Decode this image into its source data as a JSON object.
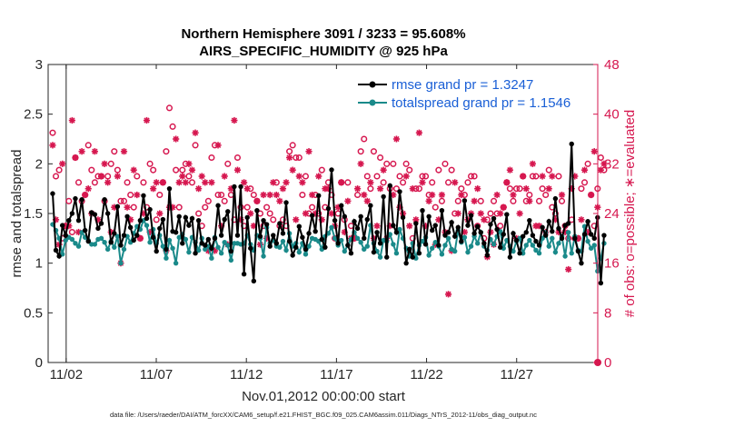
{
  "chart_data": {
    "type": "line",
    "title_line1": "Northern Hemisphere 3091 / 3233 = 95.608%",
    "title_line2": "AIRS_SPECIFIC_HUMIDITY @ 925 hPa",
    "xlabel": "Nov.01,2012 00:00:00 start",
    "ylabel_left": "rmse and totalspread",
    "ylabel_right": "# of obs: o=possible; ∗=evaluated",
    "footnote": "data file: /Users/raeder/DAI/ATM_forcXX/CAM6_setup/f.e21.FHIST_BGC.f09_025.CAM6assim.011/Diags_NTrS_2012-11/obs_diag_output.nc",
    "x_range_days": [
      0.5,
      31.0
    ],
    "ylim_left": [
      0,
      3
    ],
    "ylim_right": [
      0,
      48
    ],
    "y_ticks_left": [
      "0",
      "0.5",
      "1",
      "1.5",
      "2",
      "2.5",
      "3"
    ],
    "y_ticks_right": [
      "0",
      "8",
      "16",
      "24",
      "32",
      "40",
      "48"
    ],
    "x_ticks": [
      {
        "day": 1.5,
        "label": "11/02"
      },
      {
        "day": 6.5,
        "label": "11/07"
      },
      {
        "day": 11.5,
        "label": "11/12"
      },
      {
        "day": 16.5,
        "label": "11/17"
      },
      {
        "day": 21.5,
        "label": "11/22"
      },
      {
        "day": 26.5,
        "label": "11/27"
      }
    ],
    "series": [
      {
        "name": "rmse",
        "legend": "rmse grand pr = 1.3247",
        "color": "#000000",
        "values": [
          1.7,
          1.13,
          1.07,
          1.38,
          1.28,
          1.43,
          1.5,
          1.65,
          1.43,
          1.64,
          1.33,
          1.22,
          1.51,
          1.49,
          1.35,
          1.4,
          1.64,
          1.5,
          1.21,
          1.3,
          1.57,
          1.18,
          1.28,
          1.47,
          1.36,
          1.23,
          1.28,
          1.43,
          1.68,
          1.45,
          1.54,
          1.26,
          1.12,
          1.35,
          1.44,
          1.14,
          1.75,
          1.32,
          1.31,
          1.47,
          1.2,
          1.46,
          1.38,
          1.45,
          1.1,
          1.43,
          1.2,
          1.18,
          1.24,
          1.15,
          1.25,
          1.58,
          1.28,
          1.44,
          1.52,
          1.12,
          1.77,
          1.28,
          1.77,
          0.89,
          1.46,
          1.15,
          0.82,
          1.53,
          1.27,
          1.43,
          1.39,
          1.17,
          1.28,
          1.2,
          1.4,
          1.3,
          1.61,
          1.22,
          1.08,
          1.16,
          1.37,
          1.26,
          1.14,
          1.3,
          1.48,
          1.32,
          1.68,
          1.24,
          1.16,
          1.55,
          1.94,
          1.43,
          1.2,
          1.58,
          1.47,
          1.18,
          1.1,
          1.42,
          1.35,
          1.47,
          1.25,
          1.44,
          1.58,
          1.11,
          1.31,
          1.2,
          1.67,
          1.06,
          1.78,
          1.38,
          1.31,
          1.72,
          1.46,
          1.0,
          1.14,
          1.06,
          1.4,
          1.1,
          1.53,
          1.19,
          1.47,
          1.33,
          1.38,
          1.18,
          1.53,
          1.28,
          1.31,
          1.41,
          1.27,
          1.36,
          1.22,
          1.63,
          1.38,
          1.48,
          1.3,
          1.37,
          1.31,
          1.2,
          1.08,
          1.39,
          1.45,
          1.34,
          1.16,
          1.29,
          1.49,
          1.06,
          1.3,
          1.23,
          1.1,
          1.27,
          1.31,
          1.43,
          1.28,
          1.22,
          1.18,
          1.36,
          1.28,
          1.42,
          1.32,
          1.65,
          1.35,
          1.25,
          1.38,
          1.4,
          2.2,
          1.25,
          1.12,
          1.0,
          1.29,
          1.42,
          1.29,
          1.25,
          1.46,
          0.8,
          1.28
        ]
      },
      {
        "name": "totalspread",
        "legend": "totalspread grand pr = 1.1546",
        "color": "#1a8a8a",
        "values": [
          1.39,
          1.33,
          1.25,
          1.09,
          1.23,
          1.26,
          1.24,
          1.2,
          1.17,
          1.31,
          1.26,
          1.23,
          1.19,
          1.19,
          1.24,
          1.25,
          1.21,
          1.14,
          1.22,
          1.16,
          1.27,
          1.0,
          1.14,
          1.27,
          1.21,
          1.3,
          1.37,
          1.34,
          1.43,
          1.38,
          1.21,
          1.34,
          1.2,
          1.28,
          1.17,
          1.05,
          1.23,
          1.15,
          1.0,
          1.26,
          1.29,
          1.24,
          1.11,
          1.26,
          1.21,
          1.13,
          1.25,
          1.14,
          1.17,
          1.05,
          1.26,
          1.16,
          1.1,
          1.21,
          1.18,
          1.03,
          1.2,
          1.2,
          1.19,
          1.2,
          1.28,
          1.19,
          1.13,
          1.28,
          1.25,
          1.07,
          1.36,
          1.2,
          1.23,
          1.17,
          1.16,
          1.22,
          1.13,
          1.3,
          1.17,
          1.2,
          1.11,
          1.2,
          1.09,
          1.17,
          1.25,
          1.24,
          1.22,
          1.14,
          1.27,
          1.3,
          1.36,
          1.25,
          1.18,
          1.23,
          1.12,
          1.18,
          1.24,
          1.31,
          1.25,
          1.21,
          1.14,
          1.17,
          1.38,
          1.2,
          1.12,
          1.06,
          1.23,
          1.22,
          1.29,
          1.19,
          1.1,
          1.34,
          1.25,
          1.15,
          1.07,
          1.2,
          1.05,
          1.18,
          1.22,
          1.26,
          1.08,
          1.15,
          1.21,
          1.17,
          1.09,
          1.18,
          1.25,
          1.14,
          1.12,
          1.33,
          1.21,
          1.26,
          1.11,
          1.17,
          1.27,
          1.2,
          1.31,
          1.17,
          1.13,
          1.24,
          1.19,
          1.27,
          1.32,
          1.15,
          1.23,
          1.17,
          1.12,
          1.22,
          1.25,
          1.1,
          1.18,
          1.23,
          1.18,
          1.13,
          1.1,
          1.25,
          1.31,
          1.17,
          1.25,
          1.11,
          1.2,
          1.27,
          1.07,
          1.31,
          1.1,
          1.27,
          1.13,
          1.12,
          1.37,
          1.22,
          1.15,
          1.18,
          0.92,
          1.05,
          1.2
        ]
      },
      {
        "name": "possible",
        "marker": "o",
        "color": "#d6174f",
        "values": [
          37,
          30,
          31,
          20,
          22,
          26,
          21,
          33,
          29,
          26,
          27,
          35,
          31,
          29,
          30,
          30,
          26,
          30,
          32,
          34,
          31,
          26,
          26,
          29,
          27,
          25,
          30,
          20,
          29,
          25,
          32,
          31,
          23,
          27,
          29,
          34,
          41,
          38,
          31,
          25,
          31,
          32,
          30,
          29,
          35,
          24,
          22,
          25,
          26,
          33,
          35,
          27,
          27,
          26,
          32,
          27,
          23,
          33,
          25,
          22,
          25,
          28,
          27,
          26,
          24,
          22,
          25,
          24,
          23,
          29,
          22,
          23,
          22,
          34,
          35,
          33,
          33,
          27,
          30,
          24,
          25,
          27,
          24,
          31,
          25,
          29,
          27,
          20,
          24,
          29,
          23,
          29,
          22,
          20,
          27,
          34,
          36,
          30,
          28,
          34,
          30,
          33,
          29,
          32,
          28,
          32,
          28,
          30,
          29,
          32,
          31,
          20,
          28,
          28,
          30,
          30,
          27,
          29,
          25,
          31,
          26,
          32,
          29,
          31,
          24,
          26,
          28,
          27,
          29,
          30,
          30,
          22,
          26,
          20,
          23,
          24,
          26,
          24,
          22,
          25,
          29,
          28,
          26,
          28,
          28,
          30,
          26,
          27,
          30,
          30,
          26,
          28,
          27,
          31,
          25,
          24,
          30,
          26,
          22,
          20,
          23,
          20,
          20,
          28,
          29,
          32,
          27,
          22,
          28,
          33,
          31
        ]
      },
      {
        "name": "evaluated",
        "marker": "*",
        "color": "#d6174f",
        "values": [
          35,
          23,
          19,
          32,
          22,
          22,
          39,
          33,
          21,
          34,
          27,
          28,
          24,
          34,
          23,
          30,
          32,
          29,
          21,
          25,
          30,
          16,
          34,
          25,
          23,
          31,
          27,
          20,
          24,
          39,
          21,
          28,
          29,
          24,
          29,
          18,
          25,
          25,
          36,
          29,
          30,
          29,
          32,
          31,
          37,
          28,
          30,
          29,
          18,
          29,
          18,
          35,
          22,
          30,
          19,
          28,
          39,
          31,
          23,
          29,
          28,
          24,
          22,
          26,
          19,
          27,
          20,
          27,
          29,
          27,
          26,
          28,
          29,
          33,
          31,
          23,
          30,
          29,
          24,
          34,
          27,
          24,
          30,
          23,
          28,
          28,
          24,
          22,
          25,
          29,
          21,
          26,
          20,
          20,
          28,
          32,
          27,
          26,
          29,
          20,
          22,
          28,
          31,
          20,
          22,
          27,
          36,
          25,
          24,
          30,
          22,
          28,
          23,
          37,
          29,
          22,
          26,
          27,
          19,
          23,
          27,
          21,
          11,
          18,
          29,
          24,
          27,
          21,
          23,
          24,
          26,
          28,
          24,
          23,
          17,
          21,
          19,
          27,
          24,
          25,
          29,
          31,
          27,
          20,
          24,
          30,
          28,
          26,
          32,
          22,
          22,
          30,
          21,
          28,
          30,
          23,
          21,
          27,
          21,
          15,
          28,
          30,
          20,
          23,
          31,
          21,
          27,
          34,
          25,
          31,
          32
        ]
      }
    ]
  }
}
